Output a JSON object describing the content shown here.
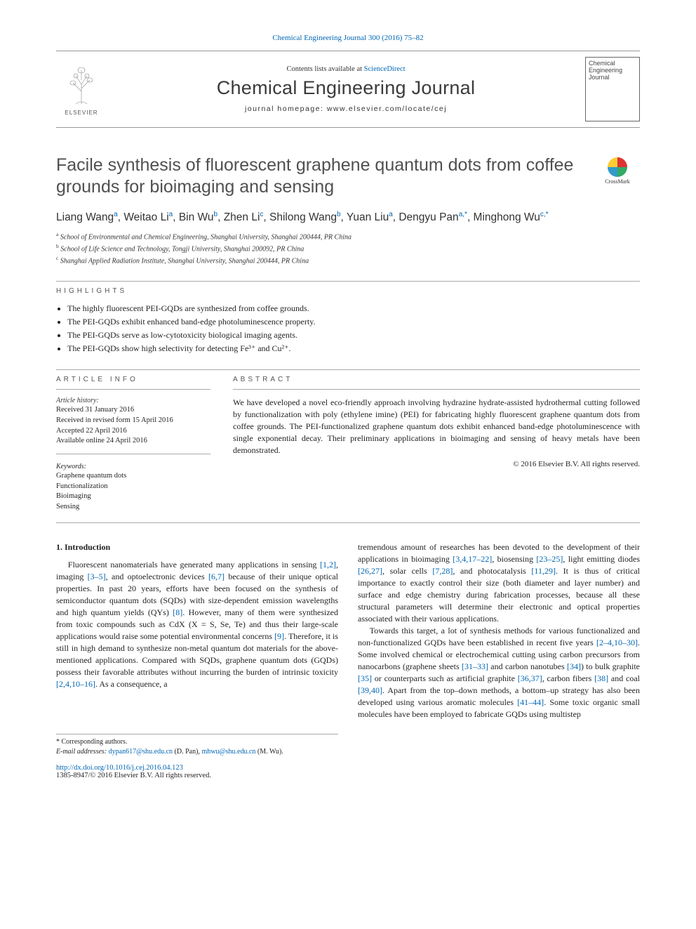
{
  "citation": {
    "text": "Chemical Engineering Journal 300 (2016) 75–82",
    "link_color": "#0066b3"
  },
  "mast": {
    "publisher_logo_alt": "ELSEVIER",
    "contents_prefix": "Contents lists available at ",
    "contents_link": "ScienceDirect",
    "journal": "Chemical Engineering Journal",
    "homepage_prefix": "journal homepage: ",
    "homepage_url": "www.elsevier.com/locate/cej",
    "cover_text": "Chemical Engineering Journal"
  },
  "crossmark": {
    "label": "CrossMark"
  },
  "title": "Facile synthesis of fluorescent graphene quantum dots from coffee grounds for bioimaging and sensing",
  "authors_html": "Liang Wang<sup>a</sup>, Weitao Li<sup>a</sup>, Bin Wu<sup>b</sup>, Zhen Li<sup>c</sup>, Shilong Wang<sup>b</sup>, Yuan Liu<sup>a</sup>, Dengyu Pan<sup>a,</sup><sup class='star'>*</sup>, Minghong Wu<sup>c,</sup><sup class='star'>*</sup>",
  "affiliations": [
    {
      "sup": "a",
      "text": "School of Environmental and Chemical Engineering, Shanghai University, Shanghai 200444, PR China"
    },
    {
      "sup": "b",
      "text": "School of Life Science and Technology, Tongji University, Shanghai 200092, PR China"
    },
    {
      "sup": "c",
      "text": "Shanghai Applied Radiation Institute, Shanghai University, Shanghai 200444, PR China"
    }
  ],
  "highlights": {
    "head": "highlights",
    "items": [
      "The highly fluorescent PEI-GQDs are synthesized from coffee grounds.",
      "The PEI-GQDs exhibit enhanced band-edge photoluminescence property.",
      "The PEI-GQDs serve as low-cytotoxicity biological imaging agents.",
      "The PEI-GQDs show high selectivity for detecting Fe³⁺ and Cu²⁺."
    ]
  },
  "article_info": {
    "head": "article info",
    "history_head": "Article history:",
    "history": [
      "Received 31 January 2016",
      "Received in revised form 15 April 2016",
      "Accepted 22 April 2016",
      "Available online 24 April 2016"
    ],
    "keywords_head": "Keywords:",
    "keywords": [
      "Graphene quantum dots",
      "Functionalization",
      "Bioimaging",
      "Sensing"
    ]
  },
  "abstract": {
    "head": "abstract",
    "body": "We have developed a novel eco-friendly approach involving hydrazine hydrate-assisted hydrothermal cutting followed by functionalization with poly (ethylene imine) (PEI) for fabricating highly fluorescent graphene quantum dots from coffee grounds. The PEI-functionalized graphene quantum dots exhibit enhanced band-edge photoluminescence with single exponential decay. Their preliminary applications in bioimaging and sensing of heavy metals have been demonstrated.",
    "copyright": "© 2016 Elsevier B.V. All rights reserved."
  },
  "intro": {
    "head": "1. Introduction",
    "col1_html": "Fluorescent nanomaterials have generated many applications in sensing <a class='ref'>[1,2]</a>, imaging <a class='ref'>[3–5]</a>, and optoelectronic devices <a class='ref'>[6,7]</a> because of their unique optical properties. In past 20 years, efforts have been focused on the synthesis of semiconductor quantum dots (SQDs) with size-dependent emission wavelengths and high quantum yields (QYs) <a class='ref'>[8]</a>. However, many of them were synthesized from toxic compounds such as CdX (X = S, Se, Te) and thus their large-scale applications would raise some potential environmental concerns <a class='ref'>[9]</a>. Therefore, it is still in high demand to synthesize non-metal quantum dot materials for the above-mentioned applications. Compared with SQDs, graphene quantum dots (GQDs) possess their favorable attributes without incurring the burden of intrinsic toxicity <a class='ref'>[2,4,10–16]</a>. As a consequence, a",
    "col2a_html": "tremendous amount of researches has been devoted to the development of their applications in bioimaging <a class='ref'>[3,4,17–22]</a>, biosensing <a class='ref'>[23–25]</a>, light emitting diodes <a class='ref'>[26,27]</a>, solar cells <a class='ref'>[7,28]</a>, and photocatalysis <a class='ref'>[11,29]</a>. It is thus of critical importance to exactly control their size (both diameter and layer number) and surface and edge chemistry during fabrication processes, because all these structural parameters will determine their electronic and optical properties associated with their various applications.",
    "col2b_html": "Towards this target, a lot of synthesis methods for various functionalized and non-functionalized GQDs have been established in recent five years <a class='ref'>[2–4,10–30]</a>. Some involved chemical or electrochemical cutting using carbon precursors from nanocarbons (graphene sheets <a class='ref'>[31–33]</a> and carbon nanotubes <a class='ref'>[34]</a>) to bulk graphite <a class='ref'>[35]</a> or counterparts such as artificial graphite <a class='ref'>[36,37]</a>, carbon fibers <a class='ref'>[38]</a> and coal <a class='ref'>[39,40]</a>. Apart from the top–down methods, a bottom–up strategy has also been developed using various aromatic molecules <a class='ref'>[41–44]</a>. Some toxic organic small molecules have been employed to fabricate GQDs using multistep"
  },
  "footnotes": {
    "corr": "* Corresponding authors.",
    "email_label": "E-mail addresses: ",
    "email1": "dypan617@shu.edu.cn",
    "email1_name": " (D. Pan), ",
    "email2": "mhwu@shu.edu.cn",
    "email2_name": " (M. Wu)."
  },
  "doi": {
    "url": "http://dx.doi.org/10.1016/j.cej.2016.04.123",
    "issn_line": "1385-8947/© 2016 Elsevier B.V. All rights reserved."
  },
  "colors": {
    "link": "#0066b3",
    "text": "#221f1f",
    "rule": "#aaaaaa",
    "heading_gray": "#505050"
  }
}
